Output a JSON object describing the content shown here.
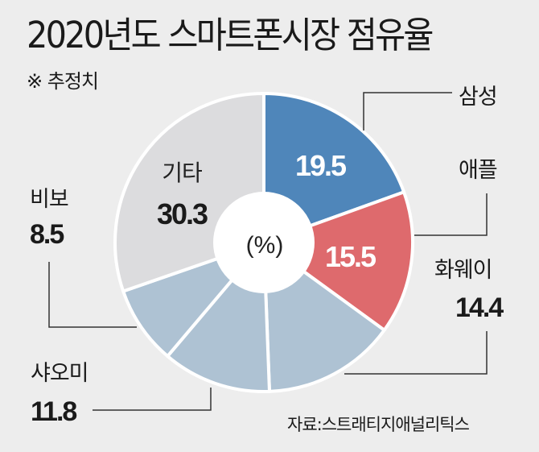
{
  "title": "2020년도 스마트폰시장 점유율",
  "note": "※ 추정치",
  "source": "자료:스트래티지애널리틱스",
  "center_label": "(%)",
  "colors": {
    "background": "#ededed",
    "samsung": "#4f86ba",
    "apple": "#de6a6d",
    "chinese": "#aec2d3",
    "others": "#dcdcde",
    "separator": "#ffffff",
    "leader": "#333333"
  },
  "labels": {
    "samsung": {
      "name": "삼성",
      "value": "19.5"
    },
    "apple": {
      "name": "애플",
      "value": "15.5"
    },
    "huawei": {
      "name": "화웨이",
      "value": "14.4"
    },
    "xiaomi": {
      "name": "샤오미",
      "value": "11.8"
    },
    "vivo": {
      "name": "비보",
      "value": "8.5"
    },
    "others": {
      "name": "기타",
      "value": "30.3"
    }
  },
  "chart_data": {
    "type": "pie",
    "subtype": "donut",
    "title": "2020년도 스마트폰시장 점유율",
    "subtitle": "※ 추정치",
    "unit": "%",
    "start_angle": "12 o'clock, clockwise",
    "categories": [
      "삼성",
      "애플",
      "화웨이",
      "샤오미",
      "비보",
      "기타"
    ],
    "values": [
      19.5,
      15.5,
      14.4,
      11.8,
      8.5,
      30.3
    ],
    "slice_colors": [
      "#4f86ba",
      "#de6a6d",
      "#aec2d3",
      "#aec2d3",
      "#aec2d3",
      "#dcdcde"
    ],
    "source": "자료:스트래티지애널리틱스"
  }
}
